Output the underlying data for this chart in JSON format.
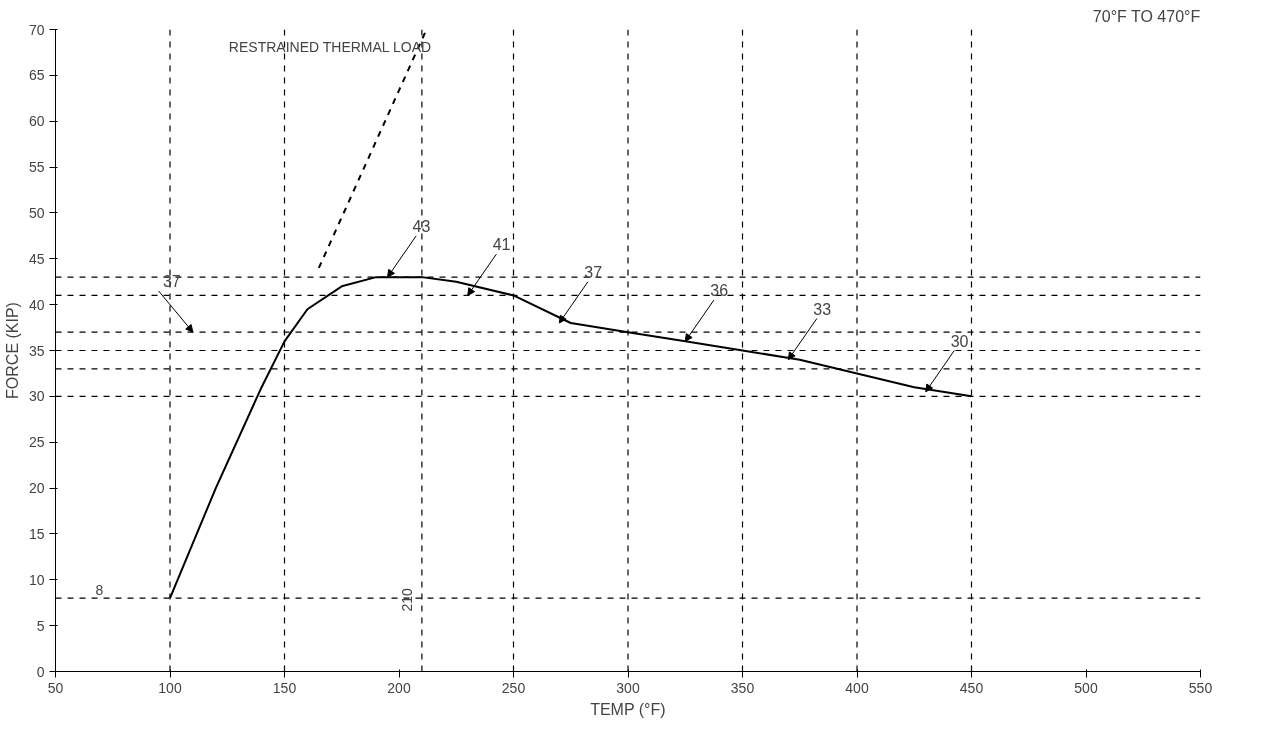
{
  "chart_data": {
    "type": "line",
    "subtitle": "70°F TO 470°F",
    "xlabel": "TEMP (°F)",
    "ylabel": "FORCE (KIP)",
    "xlim": [
      50,
      550
    ],
    "ylim": [
      0,
      70
    ],
    "xticks": [
      50,
      100,
      150,
      200,
      250,
      300,
      350,
      400,
      450,
      500,
      550
    ],
    "yticks": [
      0,
      5,
      10,
      15,
      20,
      25,
      30,
      35,
      40,
      45,
      50,
      55,
      60,
      65,
      70
    ],
    "grid": false,
    "marker": "none",
    "series": [
      {
        "color": "#000000",
        "line_style": "solid",
        "x": [
          100,
          120,
          140,
          150,
          160,
          175,
          190,
          200,
          210,
          225,
          250,
          275,
          300,
          325,
          350,
          375,
          400,
          425,
          450
        ],
        "values": [
          8,
          20,
          31,
          36,
          39.5,
          42,
          43,
          43,
          43,
          42.5,
          41,
          38,
          37,
          36,
          35,
          34,
          32.5,
          31,
          30
        ]
      },
      {
        "name": "RESTRAINED THERMAL LOAD",
        "color": "#000000",
        "line_style": "dashed",
        "x": [
          165,
          212
        ],
        "values": [
          44,
          70
        ]
      }
    ],
    "ref_lines": [
      {
        "axis": "y",
        "value": 8,
        "label": "8",
        "line_style": "dashed"
      },
      {
        "axis": "y",
        "value": 30,
        "label": null,
        "line_style": "dashed"
      },
      {
        "axis": "y",
        "value": 33,
        "label": null,
        "line_style": "dashed"
      },
      {
        "axis": "y",
        "value": 35,
        "label": null,
        "line_style": "dashed"
      },
      {
        "axis": "y",
        "value": 37,
        "label": null,
        "line_style": "dashed"
      },
      {
        "axis": "y",
        "value": 41,
        "label": null,
        "line_style": "dashed"
      },
      {
        "axis": "y",
        "value": 43,
        "label": null,
        "line_style": "dashed"
      },
      {
        "axis": "x",
        "value": 100,
        "label": null,
        "line_style": "dashed"
      },
      {
        "axis": "x",
        "value": 150,
        "label": null,
        "line_style": "dashed"
      },
      {
        "axis": "x",
        "value": 210,
        "label": "210",
        "line_style": "dashed"
      },
      {
        "axis": "x",
        "value": 250,
        "label": null,
        "line_style": "dashed"
      },
      {
        "axis": "x",
        "value": 300,
        "label": null,
        "line_style": "dashed"
      },
      {
        "axis": "x",
        "value": 350,
        "label": null,
        "line_style": "dashed"
      },
      {
        "axis": "x",
        "value": 400,
        "label": null,
        "line_style": "dashed"
      },
      {
        "axis": "x",
        "value": 450,
        "label": null,
        "line_style": "dashed"
      }
    ],
    "annotations": [
      {
        "text": "37",
        "x": 110,
        "y": 37
      },
      {
        "text": "43",
        "x": 195,
        "y": 43
      },
      {
        "text": "41",
        "x": 230,
        "y": 41
      },
      {
        "text": "37",
        "x": 270,
        "y": 38
      },
      {
        "text": "36",
        "x": 325,
        "y": 36
      },
      {
        "text": "33",
        "x": 370,
        "y": 34
      },
      {
        "text": "30",
        "x": 430,
        "y": 30.5
      }
    ]
  }
}
